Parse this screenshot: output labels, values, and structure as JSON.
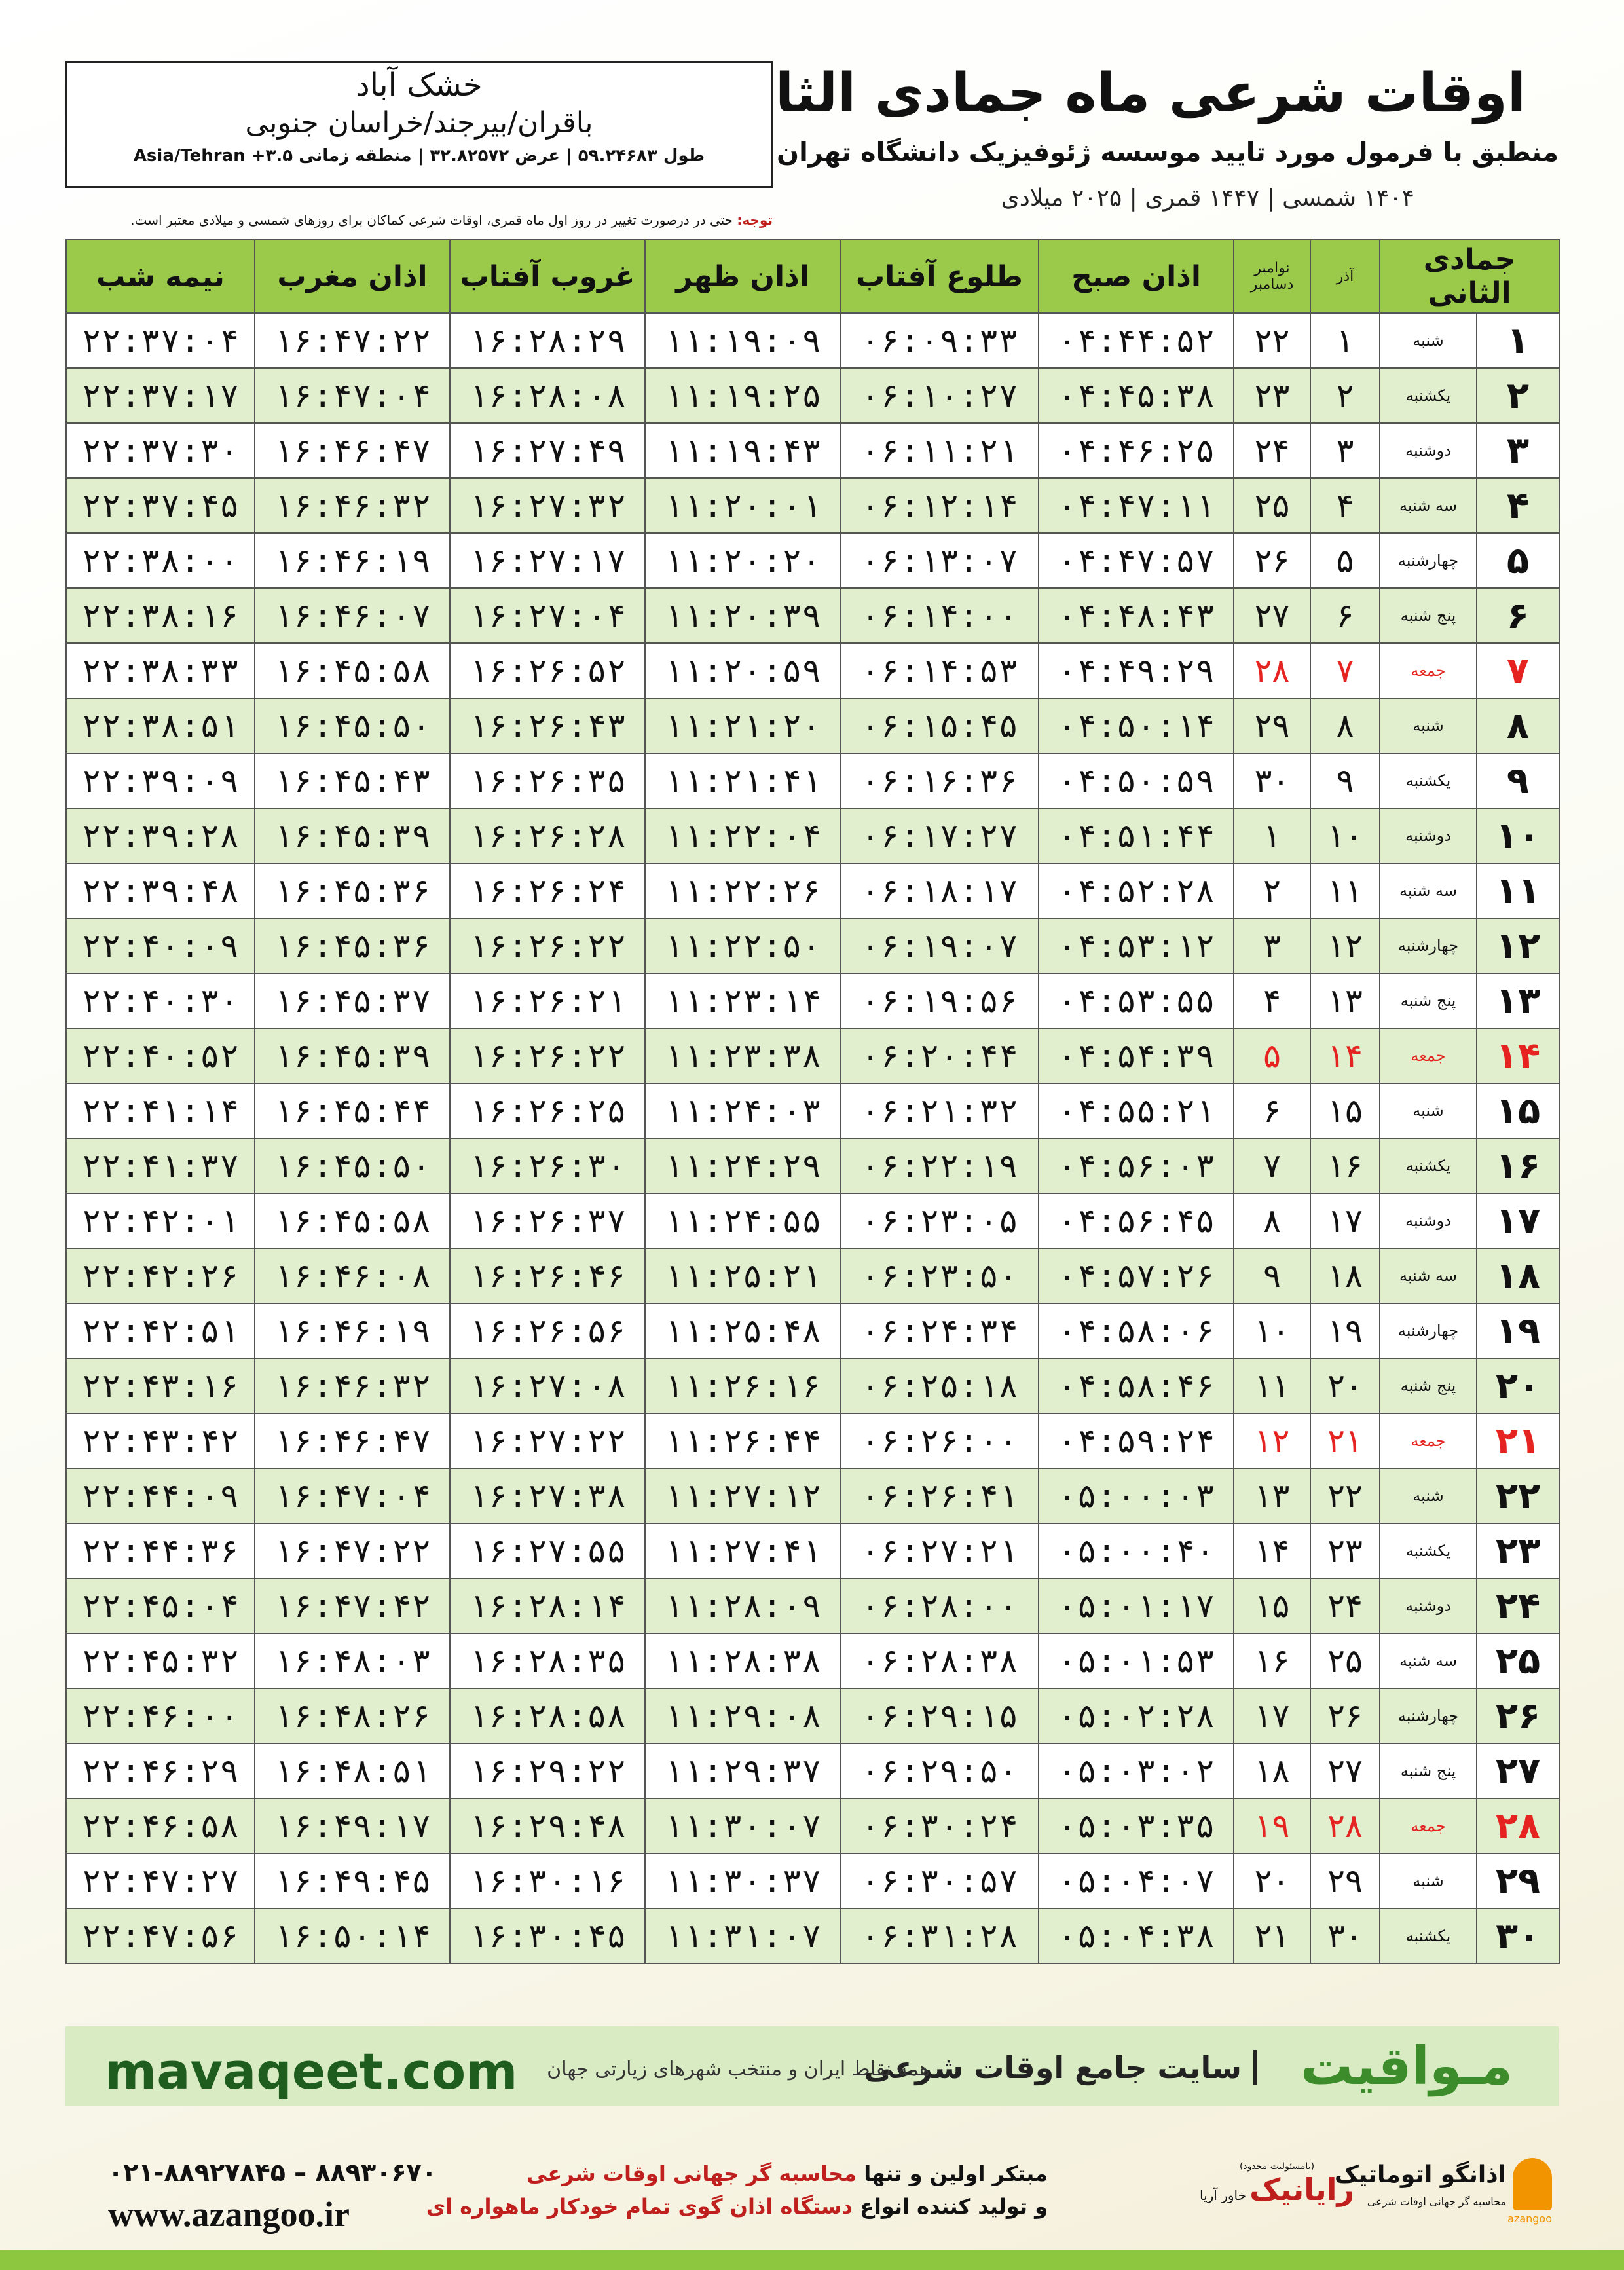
{
  "header": {
    "title": "اوقات شرعی ماه جمادی الثانی",
    "subtitle": "منطبق با فرمول مورد تایید موسسه ژئوفیزیک دانشگاه تهران",
    "date_line": "۱۴۰۴ شمسی | ۱۴۴۷ قمری | ۲۰۲۵ میلادی"
  },
  "location": {
    "name": "خشک آباد",
    "region": "باقران/بیرجند/خراسان جنوبی",
    "coords": "طول ۵۹.۲۴۶۸۳ | عرض ۳۲.۸۲۵۷۲ | منطقه زمانی ۳.۵+ Asia/Tehran"
  },
  "note": {
    "label": "توجه:",
    "text": "حتی در درصورت تغییر در روز اول ماه قمری، اوقات شرعی کماکان برای روزهای شمسی و میلادی معتبر است."
  },
  "table": {
    "columns": [
      "جمادی الثانی",
      "آذر",
      [
        "نوامبر",
        "دسامبر"
      ],
      "اذان صبح",
      "طلوع آفتاب",
      "اذان ظهر",
      "غروب آفتاب",
      "اذان مغرب",
      "نیمه شب"
    ],
    "rows": [
      {
        "cells": [
          "۱",
          "شنبه",
          "۱",
          "۲۲",
          "۰۴:۴۴:۵۲",
          "۰۶:۰۹:۳۳",
          "۱۱:۱۹:۰۹",
          "۱۶:۲۸:۲۹",
          "۱۶:۴۷:۲۲",
          "۲۲:۳۷:۰۴"
        ]
      },
      {
        "cells": [
          "۲",
          "یکشنبه",
          "۲",
          "۲۳",
          "۰۴:۴۵:۳۸",
          "۰۶:۱۰:۲۷",
          "۱۱:۱۹:۲۵",
          "۱۶:۲۸:۰۸",
          "۱۶:۴۷:۰۴",
          "۲۲:۳۷:۱۷"
        ]
      },
      {
        "cells": [
          "۳",
          "دوشنبه",
          "۳",
          "۲۴",
          "۰۴:۴۶:۲۵",
          "۰۶:۱۱:۲۱",
          "۱۱:۱۹:۴۳",
          "۱۶:۲۷:۴۹",
          "۱۶:۴۶:۴۷",
          "۲۲:۳۷:۳۰"
        ]
      },
      {
        "cells": [
          "۴",
          "سه شنبه",
          "۴",
          "۲۵",
          "۰۴:۴۷:۱۱",
          "۰۶:۱۲:۱۴",
          "۱۱:۲۰:۰۱",
          "۱۶:۲۷:۳۲",
          "۱۶:۴۶:۳۲",
          "۲۲:۳۷:۴۵"
        ]
      },
      {
        "cells": [
          "۵",
          "چهارشنبه",
          "۵",
          "۲۶",
          "۰۴:۴۷:۵۷",
          "۰۶:۱۳:۰۷",
          "۱۱:۲۰:۲۰",
          "۱۶:۲۷:۱۷",
          "۱۶:۴۶:۱۹",
          "۲۲:۳۸:۰۰"
        ]
      },
      {
        "cells": [
          "۶",
          "پنج شنبه",
          "۶",
          "۲۷",
          "۰۴:۴۸:۴۳",
          "۰۶:۱۴:۰۰",
          "۱۱:۲۰:۳۹",
          "۱۶:۲۷:۰۴",
          "۱۶:۴۶:۰۷",
          "۲۲:۳۸:۱۶"
        ]
      },
      {
        "cells": [
          "۷",
          "جمعه",
          "۷",
          "۲۸",
          "۰۴:۴۹:۲۹",
          "۰۶:۱۴:۵۳",
          "۱۱:۲۰:۵۹",
          "۱۶:۲۶:۵۲",
          "۱۶:۴۵:۵۸",
          "۲۲:۳۸:۳۳"
        ],
        "color": "#e52421"
      },
      {
        "cells": [
          "۸",
          "شنبه",
          "۸",
          "۲۹",
          "۰۴:۵۰:۱۴",
          "۰۶:۱۵:۴۵",
          "۱۱:۲۱:۲۰",
          "۱۶:۲۶:۴۳",
          "۱۶:۴۵:۵۰",
          "۲۲:۳۸:۵۱"
        ]
      },
      {
        "cells": [
          "۹",
          "یکشنبه",
          "۹",
          "۳۰",
          "۰۴:۵۰:۵۹",
          "۰۶:۱۶:۳۶",
          "۱۱:۲۱:۴۱",
          "۱۶:۲۶:۳۵",
          "۱۶:۴۵:۴۳",
          "۲۲:۳۹:۰۹"
        ]
      },
      {
        "cells": [
          "۱۰",
          "دوشنبه",
          "۱۰",
          "۱",
          "۰۴:۵۱:۴۴",
          "۰۶:۱۷:۲۷",
          "۱۱:۲۲:۰۴",
          "۱۶:۲۶:۲۸",
          "۱۶:۴۵:۳۹",
          "۲۲:۳۹:۲۸"
        ]
      },
      {
        "cells": [
          "۱۱",
          "سه شنبه",
          "۱۱",
          "۲",
          "۰۴:۵۲:۲۸",
          "۰۶:۱۸:۱۷",
          "۱۱:۲۲:۲۶",
          "۱۶:۲۶:۲۴",
          "۱۶:۴۵:۳۶",
          "۲۲:۳۹:۴۸"
        ]
      },
      {
        "cells": [
          "۱۲",
          "چهارشنبه",
          "۱۲",
          "۳",
          "۰۴:۵۳:۱۲",
          "۰۶:۱۹:۰۷",
          "۱۱:۲۲:۵۰",
          "۱۶:۲۶:۲۲",
          "۱۶:۴۵:۳۶",
          "۲۲:۴۰:۰۹"
        ]
      },
      {
        "cells": [
          "۱۳",
          "پنج شنبه",
          "۱۳",
          "۴",
          "۰۴:۵۳:۵۵",
          "۰۶:۱۹:۵۶",
          "۱۱:۲۳:۱۴",
          "۱۶:۲۶:۲۱",
          "۱۶:۴۵:۳۷",
          "۲۲:۴۰:۳۰"
        ]
      },
      {
        "cells": [
          "۱۴",
          "جمعه",
          "۱۴",
          "۵",
          "۰۴:۵۴:۳۹",
          "۰۶:۲۰:۴۴",
          "۱۱:۲۳:۳۸",
          "۱۶:۲۶:۲۲",
          "۱۶:۴۵:۳۹",
          "۲۲:۴۰:۵۲"
        ],
        "color": "#e52421"
      },
      {
        "cells": [
          "۱۵",
          "شنبه",
          "۱۵",
          "۶",
          "۰۴:۵۵:۲۱",
          "۰۶:۲۱:۳۲",
          "۱۱:۲۴:۰۳",
          "۱۶:۲۶:۲۵",
          "۱۶:۴۵:۴۴",
          "۲۲:۴۱:۱۴"
        ]
      },
      {
        "cells": [
          "۱۶",
          "یکشنبه",
          "۱۶",
          "۷",
          "۰۴:۵۶:۰۳",
          "۰۶:۲۲:۱۹",
          "۱۱:۲۴:۲۹",
          "۱۶:۲۶:۳۰",
          "۱۶:۴۵:۵۰",
          "۲۲:۴۱:۳۷"
        ]
      },
      {
        "cells": [
          "۱۷",
          "دوشنبه",
          "۱۷",
          "۸",
          "۰۴:۵۶:۴۵",
          "۰۶:۲۳:۰۵",
          "۱۱:۲۴:۵۵",
          "۱۶:۲۶:۳۷",
          "۱۶:۴۵:۵۸",
          "۲۲:۴۲:۰۱"
        ]
      },
      {
        "cells": [
          "۱۸",
          "سه شنبه",
          "۱۸",
          "۹",
          "۰۴:۵۷:۲۶",
          "۰۶:۲۳:۵۰",
          "۱۱:۲۵:۲۱",
          "۱۶:۲۶:۴۶",
          "۱۶:۴۶:۰۸",
          "۲۲:۴۲:۲۶"
        ]
      },
      {
        "cells": [
          "۱۹",
          "چهارشنبه",
          "۱۹",
          "۱۰",
          "۰۴:۵۸:۰۶",
          "۰۶:۲۴:۳۴",
          "۱۱:۲۵:۴۸",
          "۱۶:۲۶:۵۶",
          "۱۶:۴۶:۱۹",
          "۲۲:۴۲:۵۱"
        ]
      },
      {
        "cells": [
          "۲۰",
          "پنج شنبه",
          "۲۰",
          "۱۱",
          "۰۴:۵۸:۴۶",
          "۰۶:۲۵:۱۸",
          "۱۱:۲۶:۱۶",
          "۱۶:۲۷:۰۸",
          "۱۶:۴۶:۳۲",
          "۲۲:۴۳:۱۶"
        ]
      },
      {
        "cells": [
          "۲۱",
          "جمعه",
          "۲۱",
          "۱۲",
          "۰۴:۵۹:۲۴",
          "۰۶:۲۶:۰۰",
          "۱۱:۲۶:۴۴",
          "۱۶:۲۷:۲۲",
          "۱۶:۴۶:۴۷",
          "۲۲:۴۳:۴۲"
        ],
        "color": "#e52421"
      },
      {
        "cells": [
          "۲۲",
          "شنبه",
          "۲۲",
          "۱۳",
          "۰۵:۰۰:۰۳",
          "۰۶:۲۶:۴۱",
          "۱۱:۲۷:۱۲",
          "۱۶:۲۷:۳۸",
          "۱۶:۴۷:۰۴",
          "۲۲:۴۴:۰۹"
        ]
      },
      {
        "cells": [
          "۲۳",
          "یکشنبه",
          "۲۳",
          "۱۴",
          "۰۵:۰۰:۴۰",
          "۰۶:۲۷:۲۱",
          "۱۱:۲۷:۴۱",
          "۱۶:۲۷:۵۵",
          "۱۶:۴۷:۲۲",
          "۲۲:۴۴:۳۶"
        ]
      },
      {
        "cells": [
          "۲۴",
          "دوشنبه",
          "۲۴",
          "۱۵",
          "۰۵:۰۱:۱۷",
          "۰۶:۲۸:۰۰",
          "۱۱:۲۸:۰۹",
          "۱۶:۲۸:۱۴",
          "۱۶:۴۷:۴۲",
          "۲۲:۴۵:۰۴"
        ]
      },
      {
        "cells": [
          "۲۵",
          "سه شنبه",
          "۲۵",
          "۱۶",
          "۰۵:۰۱:۵۳",
          "۰۶:۲۸:۳۸",
          "۱۱:۲۸:۳۸",
          "۱۶:۲۸:۳۵",
          "۱۶:۴۸:۰۳",
          "۲۲:۴۵:۳۲"
        ]
      },
      {
        "cells": [
          "۲۶",
          "چهارشنبه",
          "۲۶",
          "۱۷",
          "۰۵:۰۲:۲۸",
          "۰۶:۲۹:۱۵",
          "۱۱:۲۹:۰۸",
          "۱۶:۲۸:۵۸",
          "۱۶:۴۸:۲۶",
          "۲۲:۴۶:۰۰"
        ]
      },
      {
        "cells": [
          "۲۷",
          "پنج شنبه",
          "۲۷",
          "۱۸",
          "۰۵:۰۳:۰۲",
          "۰۶:۲۹:۵۰",
          "۱۱:۲۹:۳۷",
          "۱۶:۲۹:۲۲",
          "۱۶:۴۸:۵۱",
          "۲۲:۴۶:۲۹"
        ]
      },
      {
        "cells": [
          "۲۸",
          "جمعه",
          "۲۸",
          "۱۹",
          "۰۵:۰۳:۳۵",
          "۰۶:۳۰:۲۴",
          "۱۱:۳۰:۰۷",
          "۱۶:۲۹:۴۸",
          "۱۶:۴۹:۱۷",
          "۲۲:۴۶:۵۸"
        ],
        "color": "#e52421"
      },
      {
        "cells": [
          "۲۹",
          "شنبه",
          "۲۹",
          "۲۰",
          "۰۵:۰۴:۰۷",
          "۰۶:۳۰:۵۷",
          "۱۱:۳۰:۳۷",
          "۱۶:۳۰:۱۶",
          "۱۶:۴۹:۴۵",
          "۲۲:۴۷:۲۷"
        ]
      },
      {
        "cells": [
          "۳۰",
          "یکشنبه",
          "۳۰",
          "۲۱",
          "۰۵:۰۴:۳۸",
          "۰۶:۳۱:۲۸",
          "۱۱:۳۱:۰۷",
          "۱۶:۳۰:۴۵",
          "۱۶:۵۰:۱۴",
          "۲۲:۴۷:۵۶"
        ]
      }
    ]
  },
  "footer": {
    "brand": "مـواقیت",
    "slogan": "سایت جامع اوقات شرعی",
    "coverage": "همه نقاط ایران و منتخب شهرهای زیارتی جهان",
    "website": "mavaqeet.com"
  },
  "contact": {
    "phone": "۰۲۱-۸۸۹۲۷۸۴۵ – ۸۸۹۳۰۶۷۰",
    "website": "www.azangoo.ir",
    "line1_prefix": "مبتکر اولین و تنها",
    "line1_highlight": "محاسبه گر جهانی اوقات شرعی",
    "line2_prefix": "و تولید کننده انواع",
    "line2_highlight": "دستگاه اذان گوی تمام خودکار ماهواره ای"
  },
  "logos": {
    "ltd": "(بامسئولیت محدود)",
    "raianik": "رایانیک",
    "khavar": "خاور آریا",
    "azangoo_fa": "اذانگو اتوماتیک",
    "azangoo_tag": "محاسبه گر جهانی اوقات شرعی",
    "azangoo_en": "azangoo"
  }
}
